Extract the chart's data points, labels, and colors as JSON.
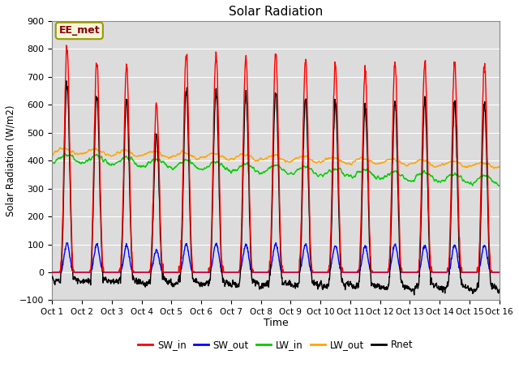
{
  "title": "Solar Radiation",
  "xlabel": "Time",
  "ylabel": "Solar Radiation (W/m2)",
  "ylim": [
    -100,
    900
  ],
  "xlim": [
    0,
    15
  ],
  "xtick_labels": [
    "Oct 1",
    "Oct 2",
    "Oct 3",
    "Oct 4",
    "Oct 5",
    "Oct 6",
    "Oct 7",
    "Oct 8",
    "Oct 9",
    "Oct 10",
    "Oct 11",
    "Oct 12",
    "Oct 13",
    "Oct 14",
    "Oct 15",
    "Oct 16"
  ],
  "annotation_text": "EE_met",
  "annotation_fg": "#8B0000",
  "annotation_bg": "#F5F5DC",
  "annotation_edge": "#999900",
  "background_color": "#DCDCDC",
  "grid_color": "#FFFFFF",
  "series": {
    "SW_in": {
      "color": "#FF0000",
      "lw": 1.0
    },
    "SW_out": {
      "color": "#0000FF",
      "lw": 1.0
    },
    "LW_in": {
      "color": "#00CC00",
      "lw": 1.0
    },
    "LW_out": {
      "color": "#FFA500",
      "lw": 1.0
    },
    "Rnet": {
      "color": "#000000",
      "lw": 1.0
    }
  },
  "sw_in_peaks": [
    800,
    760,
    735,
    600,
    775,
    785,
    770,
    790,
    760,
    740,
    720,
    750,
    755,
    750,
    745
  ],
  "n_days": 15,
  "pts_per_day": 96
}
